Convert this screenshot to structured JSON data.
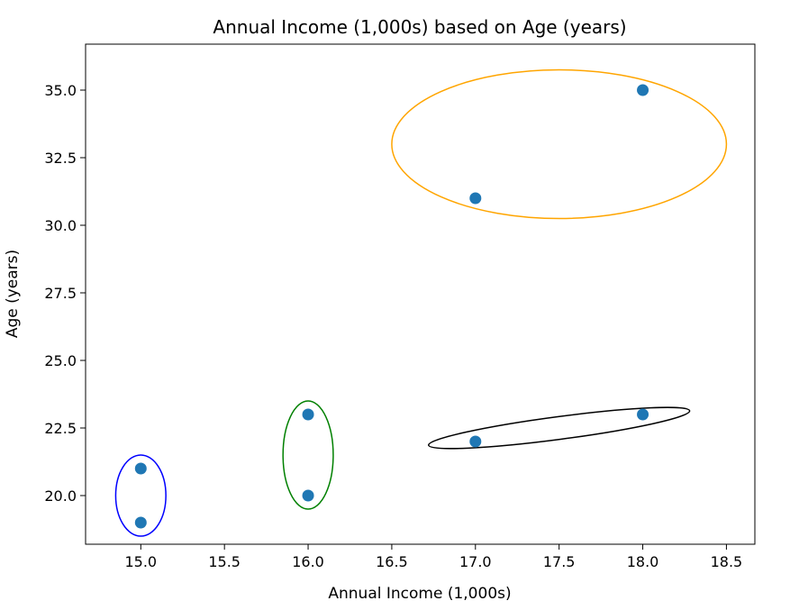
{
  "chart_data": {
    "type": "scatter",
    "title": "Annual Income (1,000s) based on Age (years)",
    "xlabel": "Annual Income (1,000s)",
    "ylabel": "Age (years)",
    "xlim": [
      14.67,
      18.67
    ],
    "ylim": [
      18.2,
      36.7
    ],
    "x_ticks": [
      15.0,
      15.5,
      16.0,
      16.5,
      17.0,
      17.5,
      18.0,
      18.5
    ],
    "y_ticks": [
      20.0,
      22.5,
      25.0,
      27.5,
      30.0,
      32.5,
      35.0
    ],
    "x_tick_labels": [
      "15.0",
      "15.5",
      "16.0",
      "16.5",
      "17.0",
      "17.5",
      "18.0",
      "18.5"
    ],
    "y_tick_labels": [
      "20.0",
      "22.5",
      "25.0",
      "27.5",
      "30.0",
      "32.5",
      "35.0"
    ],
    "grid": false,
    "point_color": "#1f77b4",
    "points": [
      {
        "x": 15.0,
        "y": 19.0
      },
      {
        "x": 15.0,
        "y": 21.0
      },
      {
        "x": 16.0,
        "y": 20.0
      },
      {
        "x": 16.0,
        "y": 23.0
      },
      {
        "x": 17.0,
        "y": 22.0
      },
      {
        "x": 18.0,
        "y": 23.0
      },
      {
        "x": 17.0,
        "y": 31.0
      },
      {
        "x": 18.0,
        "y": 35.0
      }
    ],
    "cluster_outlines": [
      {
        "color": "#0000ff",
        "cx": 15.0,
        "cy": 20.0,
        "rx": 0.15,
        "ry": 1.5,
        "angle": 0
      },
      {
        "color": "#008000",
        "cx": 16.0,
        "cy": 21.5,
        "rx": 0.15,
        "ry": 2.0,
        "angle": 0
      },
      {
        "color": "#000000",
        "cx": 17.5,
        "cy": 22.5,
        "rx": 0.787,
        "ry": 0.42,
        "angle": 7.5
      },
      {
        "color": "#ffa500",
        "cx": 17.5,
        "cy": 33.0,
        "rx": 1.0,
        "ry": 2.75,
        "angle": 0
      }
    ]
  }
}
